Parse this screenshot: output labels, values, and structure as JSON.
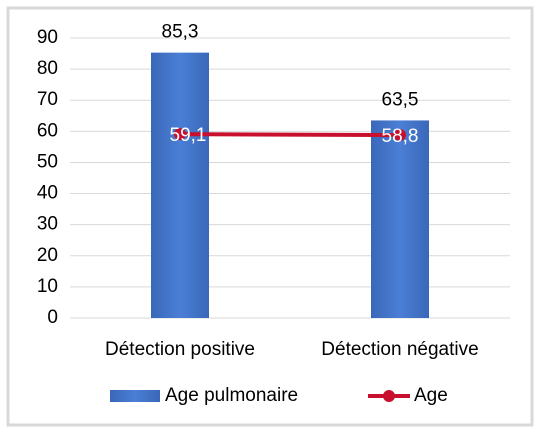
{
  "chart_data": {
    "type": "bar",
    "categories": [
      "Détection positive",
      "Détection négative"
    ],
    "series": [
      {
        "name": "Age pulmonaire",
        "type": "bar",
        "color": "#3f6fc2",
        "values": [
          85.3,
          63.5
        ],
        "value_labels": [
          "85,3",
          "63,5"
        ]
      },
      {
        "name": "Age",
        "type": "line",
        "color": "#c8102e",
        "values": [
          59.1,
          58.8
        ],
        "value_labels": [
          "59,1",
          "58,8"
        ]
      }
    ],
    "ylim": [
      0,
      90
    ],
    "yticks": [
      0,
      10,
      20,
      30,
      40,
      50,
      60,
      70,
      80,
      90
    ],
    "grid": true,
    "legend": "bottom"
  }
}
